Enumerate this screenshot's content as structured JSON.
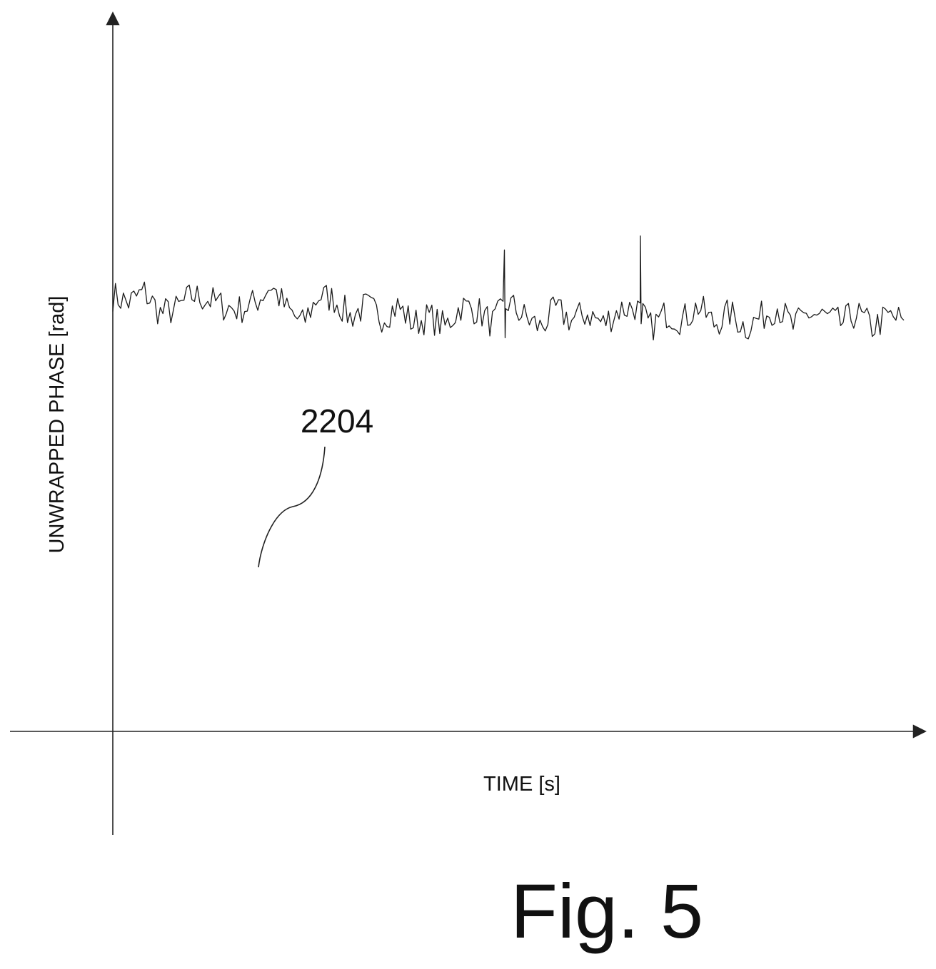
{
  "chart_data": {
    "type": "line",
    "title": "",
    "xlabel": "TIME [s]",
    "ylabel": "UNWRAPPED PHASE [rad]",
    "xlim": [
      0,
      1
    ],
    "ylim": [
      -1,
      1
    ],
    "grid": false,
    "legend": "none",
    "tick_labels": {
      "x": [],
      "y": []
    },
    "annotations": [
      {
        "text": "2204",
        "points_to": "noisy phase trace near x = 0.19"
      }
    ],
    "series": [
      {
        "x": [
          0.0,
          0.02,
          0.04,
          0.06,
          0.08,
          0.1,
          0.12,
          0.14,
          0.16,
          0.18,
          0.2,
          0.22,
          0.24,
          0.26,
          0.28,
          0.3,
          0.32,
          0.34,
          0.36,
          0.38,
          0.4,
          0.42,
          0.44,
          0.46,
          0.48,
          0.5,
          0.52,
          0.54,
          0.56,
          0.58,
          0.6,
          0.62,
          0.64,
          0.66,
          0.68,
          0.7,
          0.72,
          0.74,
          0.76,
          0.78,
          0.8,
          0.82,
          0.84,
          0.86,
          0.88,
          0.9,
          0.92,
          0.94,
          0.96,
          0.98,
          1.0
        ],
        "y": [
          0.24,
          0.22,
          0.25,
          0.19,
          0.2,
          0.24,
          0.23,
          0.21,
          0.2,
          0.22,
          0.27,
          0.2,
          0.16,
          0.24,
          0.23,
          0.18,
          0.21,
          0.18,
          0.21,
          0.16,
          0.18,
          0.15,
          0.21,
          0.2,
          0.16,
          0.22,
          0.18,
          0.15,
          0.2,
          0.17,
          0.19,
          0.16,
          0.2,
          0.21,
          0.15,
          0.19,
          0.17,
          0.21,
          0.16,
          0.19,
          0.15,
          0.18,
          0.21,
          0.15,
          0.19,
          0.18,
          0.16,
          0.19,
          0.15,
          0.18,
          0.17
        ]
      }
    ],
    "spikes": [
      {
        "x": 0.495,
        "y": 0.37
      },
      {
        "x": 0.667,
        "y": 0.41
      }
    ]
  },
  "figure": {
    "caption": "Fig. 5"
  }
}
